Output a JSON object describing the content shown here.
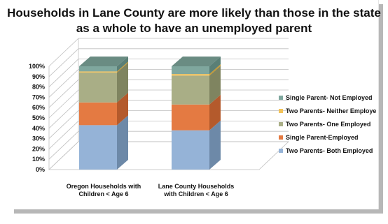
{
  "chart_data": {
    "type": "bar",
    "title": "Households in Lane County are more likely than those in the state as a whole to have an unemployed parent",
    "categories": [
      "Oregon Households with Children < Age 6",
      "Lane County Households with Children < Age 6"
    ],
    "category_lines": [
      [
        "Oregon Households with",
        "Children < Age 6"
      ],
      [
        "Lane County Households",
        "with Children < Age 6"
      ]
    ],
    "series": [
      {
        "name": "Two Parents- Both Employed",
        "values": [
          43,
          38
        ],
        "color": "#95b3d7",
        "dark": "#6d89a8"
      },
      {
        "name": "Single Parent-Employed",
        "values": [
          22,
          25
        ],
        "color": "#e47a42",
        "dark": "#b45a2c"
      },
      {
        "name": "Two Parents- One Employed",
        "values": [
          29,
          28
        ],
        "color": "#a9ae86",
        "dark": "#7f8460"
      },
      {
        "name": "Two Parents- Neither Employed",
        "values": [
          1,
          1.5
        ],
        "color": "#f3c35a",
        "dark": "#c8992f"
      },
      {
        "name": "Single Parent- Not Employed",
        "values": [
          5,
          7.5
        ],
        "color": "#7fa79e",
        "dark": "#5a7f76"
      }
    ],
    "legend_labels": [
      "Single Parent- Not Employed",
      "Two Parents- Neither Employe",
      "Two Parents- One Employed",
      "Single Parent-Employed",
      "Two Parents- Both Employed"
    ],
    "y_ticks": [
      "0%",
      "10%",
      "20%",
      "30%",
      "40%",
      "50%",
      "60%",
      "70%",
      "80%",
      "90%",
      "100%"
    ],
    "ylim": [
      0,
      100
    ],
    "stacked": true,
    "legend_position": "right",
    "grid": true
  }
}
